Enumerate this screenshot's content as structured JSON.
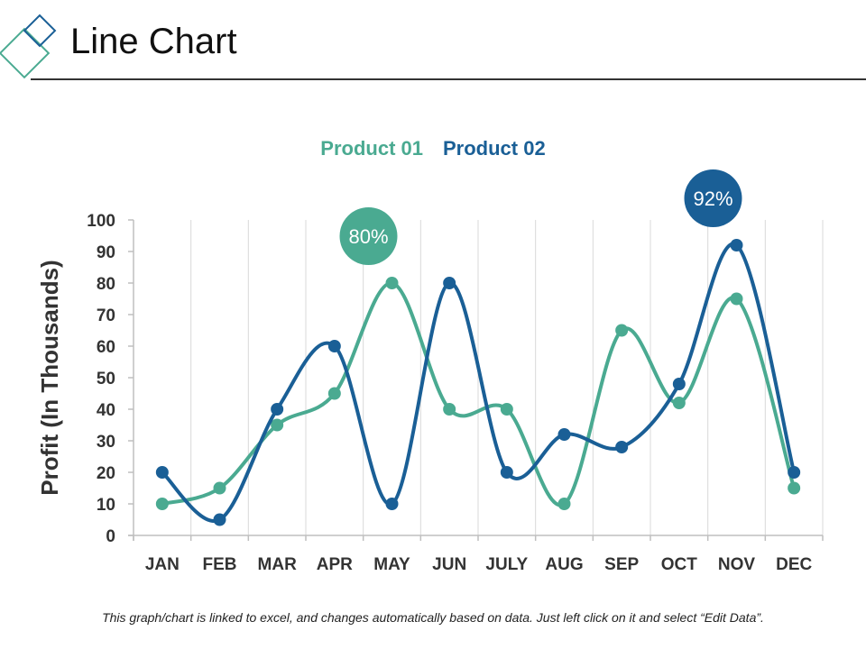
{
  "slide": {
    "title": "Line Chart",
    "footnote": "This graph/chart is linked to excel, and changes automatically based on data. Just left click on it and select “Edit Data”."
  },
  "colors": {
    "product_01": "#4aaa91",
    "product_02": "#1a5f96",
    "gridline": "#d9d9d9",
    "axis": "#bfbfbf"
  },
  "icons": [
    "diamond-logo-icon"
  ],
  "chart_data": {
    "type": "line",
    "title": "",
    "xlabel": "",
    "ylabel": "Profit (In Thousands)",
    "categories": [
      "JAN",
      "FEB",
      "MAR",
      "APR",
      "MAY",
      "JUN",
      "JULY",
      "AUG",
      "SEP",
      "OCT",
      "NOV",
      "DEC"
    ],
    "ylim": [
      0,
      100
    ],
    "yticks": [
      0,
      10,
      20,
      30,
      40,
      50,
      60,
      70,
      80,
      90,
      100
    ],
    "grid": "vertical",
    "legend_position": "top",
    "smooth": true,
    "series": [
      {
        "name": "Product 01",
        "values": [
          10,
          15,
          35,
          45,
          80,
          40,
          40,
          10,
          65,
          42,
          75,
          15
        ]
      },
      {
        "name": "Product 02",
        "values": [
          20,
          5,
          40,
          60,
          10,
          80,
          20,
          32,
          28,
          48,
          92,
          20
        ]
      }
    ],
    "annotations": [
      {
        "series": "Product 01",
        "category": "MAY",
        "text": "80%"
      },
      {
        "series": "Product 02",
        "category": "NOV",
        "text": "92%"
      }
    ]
  }
}
